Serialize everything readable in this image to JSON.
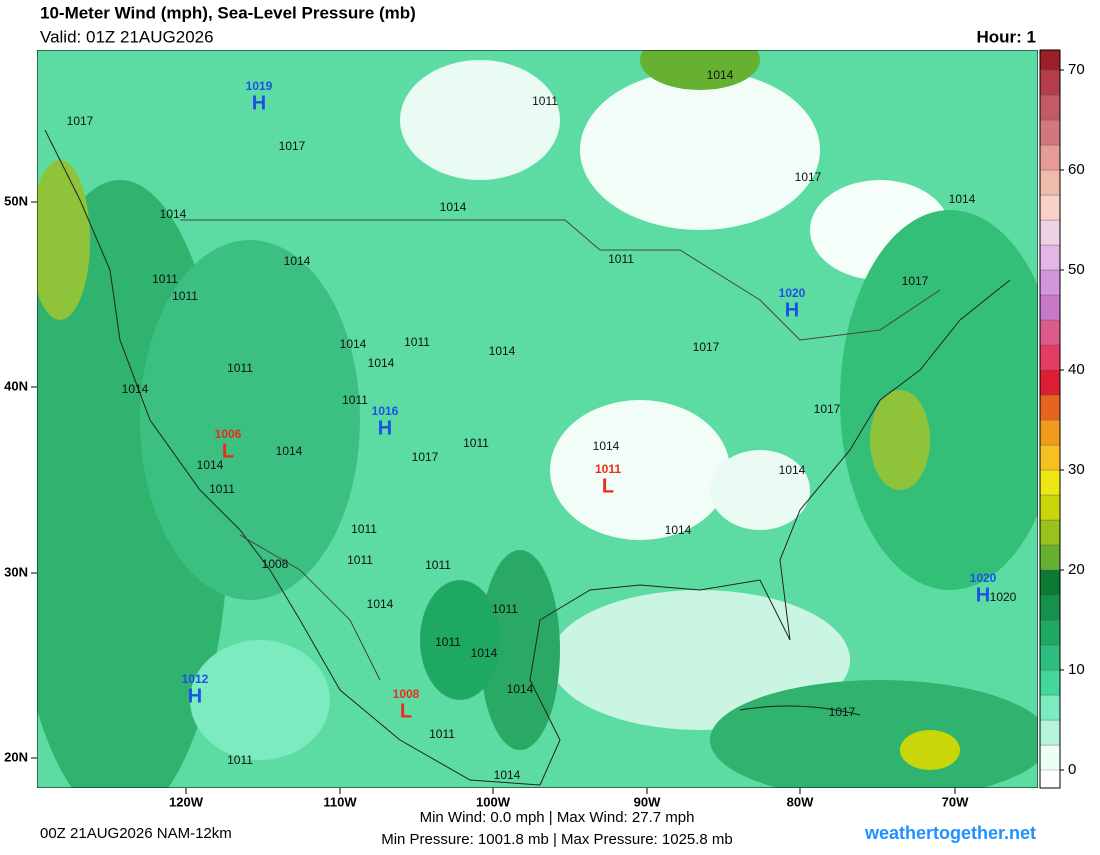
{
  "header": {
    "title": "10-Meter Wind (mph), Sea-Level Pressure (mb)",
    "valid": "Valid: 01Z 21AUG2026",
    "hour": "Hour: 1"
  },
  "map": {
    "lat_labels": [
      "50N",
      "40N",
      "30N",
      "20N"
    ],
    "lon_labels": [
      "120W",
      "110W",
      "100W",
      "90W",
      "80W",
      "70W"
    ],
    "pressure_centers": [
      {
        "letter": "H",
        "value": "1019",
        "color": "#1e50e6"
      },
      {
        "letter": "H",
        "value": "1020",
        "color": "#1e50e6"
      },
      {
        "letter": "H",
        "value": "1016",
        "color": "#1e50e6"
      },
      {
        "letter": "L",
        "value": "1006",
        "color": "#e62d1e"
      },
      {
        "letter": "L",
        "value": "1011",
        "color": "#e62d1e"
      },
      {
        "letter": "L",
        "value": "1008",
        "color": "#e62d1e"
      },
      {
        "letter": "H",
        "value": "1012",
        "color": "#1e50e6"
      },
      {
        "letter": "H",
        "value": "1020",
        "color": "#1e50e6"
      }
    ],
    "isobar_labels": [
      "1017",
      "1017",
      "1014",
      "1014",
      "1011",
      "1014",
      "1017",
      "1014",
      "1017",
      "1014",
      "1011",
      "1011",
      "1011",
      "1014",
      "1017",
      "1014",
      "1014",
      "1011",
      "1011",
      "1014",
      "1011",
      "1014",
      "1011",
      "1014",
      "1017",
      "1011",
      "1014",
      "1014",
      "1017",
      "1011",
      "1011",
      "1011",
      "1008",
      "1014",
      "1011",
      "1011",
      "1014",
      "1014",
      "1014",
      "1017",
      "1011",
      "1014",
      "1011",
      "1020"
    ]
  },
  "colorbar": {
    "ylim": [
      -1.8,
      72
    ],
    "yticks": [
      0,
      10,
      20,
      30,
      40,
      50,
      60,
      70
    ],
    "step": 2.5,
    "colors": [
      "#ebfff5",
      "#b4f5dc",
      "#7debc0",
      "#45d69c",
      "#2dbf7f",
      "#1fa862",
      "#14914a",
      "#0a7a35",
      "#66b032",
      "#99c21a",
      "#c8d60a",
      "#f0e614",
      "#f5c020",
      "#f09a1e",
      "#e6641e",
      "#dc1e32",
      "#e63c64",
      "#dc5a8c",
      "#c878c8",
      "#d296dc",
      "#e6b4e6",
      "#f0d2e6",
      "#fad2c8",
      "#f0bcaa",
      "#e69b96",
      "#d2787d",
      "#c35a64",
      "#b43c4b",
      "#9b1e28",
      "#7a0a14"
    ]
  },
  "footer": {
    "model": "00Z 21AUG2026 NAM-12km",
    "wind_stats": "Min Wind:   0.0 mph | Max Wind: 27.7 mph",
    "pressure_stats": "Min Pressure: 1001.8 mb | Max Pressure: 1025.8 mb",
    "site": "weathertogether.net"
  }
}
